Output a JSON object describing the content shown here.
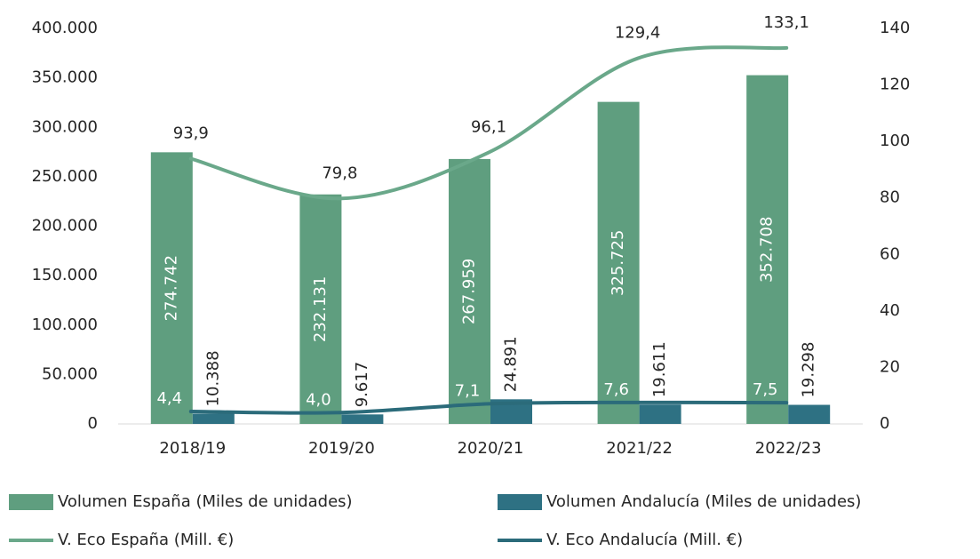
{
  "chart_data": {
    "type": "combo",
    "categories": [
      "2018/19",
      "2019/20",
      "2020/21",
      "2021/22",
      "2022/23"
    ],
    "series": [
      {
        "name": "Volumen España (Miles de unidades)",
        "type": "bar",
        "color": "#5f9e7f",
        "values": [
          274742,
          232131,
          267959,
          325725,
          352708
        ],
        "value_labels": [
          "274.742",
          "232.131",
          "267.959",
          "325.725",
          "352.708"
        ]
      },
      {
        "name": "Volumen Andalucía (Miles de unidades)",
        "type": "bar",
        "color": "#2e7183",
        "values": [
          10388,
          9617,
          24891,
          19611,
          19298
        ],
        "value_labels": [
          "10.388",
          "9.617",
          "24.891",
          "19.611",
          "19.298"
        ]
      },
      {
        "name": "V. Eco España (Mill. €)",
        "type": "line",
        "axis": "y2",
        "color": "#6aa88a",
        "values": [
          93.9,
          79.8,
          96.1,
          129.4,
          133.1
        ],
        "value_labels": [
          "93,9",
          "79,8",
          "96,1",
          "129,4",
          "133,1"
        ]
      },
      {
        "name": "V. Eco Andalucía (Mill. €)",
        "type": "line",
        "axis": "y2",
        "color": "#2b6b7a",
        "values": [
          4.4,
          4.0,
          7.1,
          7.6,
          7.5
        ],
        "value_labels": [
          "4,4",
          "4,0",
          "7,1",
          "7,6",
          "7,5"
        ]
      }
    ],
    "ylim": [
      0,
      400000
    ],
    "yticks": [
      0,
      {
        "value": 50000,
        "label": "50.000"
      },
      {
        "value": 100000,
        "label": "100.000"
      },
      {
        "value": 150000,
        "label": "150.000"
      },
      {
        "value": 200000,
        "label": "200.000"
      },
      {
        "value": 250000,
        "label": "250.000"
      },
      {
        "value": 300000,
        "label": "300.000"
      },
      {
        "value": 350000,
        "label": "350.000"
      },
      {
        "value": 400000,
        "label": "400.000"
      }
    ],
    "y2lim": [
      0,
      140
    ],
    "y2ticks": [
      0,
      20,
      40,
      60,
      80,
      100,
      120,
      140
    ],
    "grid": false,
    "legend": "bottom"
  }
}
